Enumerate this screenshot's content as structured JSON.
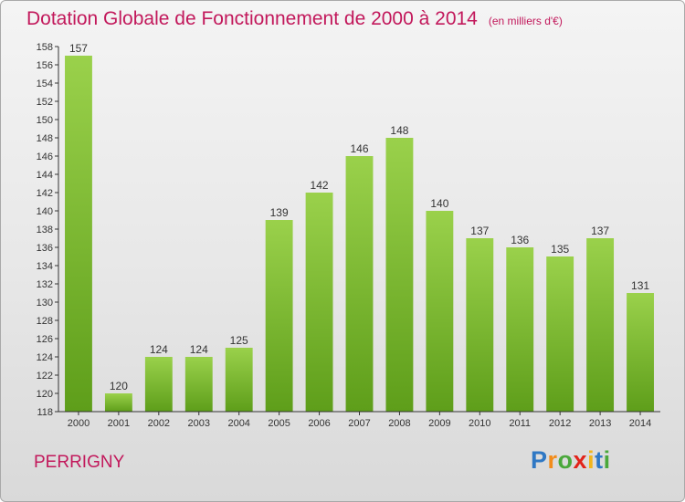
{
  "header": {
    "title": "Dotation Globale de Fonctionnement de 2000 à 2014",
    "unit": "(en milliers d'€)"
  },
  "footer": {
    "commune": "PERRIGNY",
    "logo_letters": [
      "P",
      "r",
      "o",
      "x",
      "i",
      "t",
      "i"
    ]
  },
  "colors": {
    "title": "#c2185b",
    "bar_top": "#9ad14b",
    "bar_bottom": "#5e9e1a",
    "axis": "#333333",
    "grid": "#cfcfcf"
  },
  "chart_data": {
    "type": "bar",
    "categories": [
      "2000",
      "2001",
      "2002",
      "2003",
      "2004",
      "2005",
      "2006",
      "2007",
      "2008",
      "2009",
      "2010",
      "2011",
      "2012",
      "2013",
      "2014"
    ],
    "values": [
      157,
      120,
      124,
      124,
      125,
      139,
      142,
      146,
      148,
      140,
      137,
      136,
      135,
      137,
      131
    ],
    "data_labels": [
      "157",
      "120",
      "124",
      "124",
      "125",
      "139",
      "142",
      "146",
      "148",
      "140",
      "137",
      "136",
      "135",
      "137",
      "131"
    ],
    "title": "Dotation Globale de Fonctionnement de 2000 à 2014",
    "xlabel": "",
    "ylabel": "",
    "ylim": [
      118,
      158
    ],
    "yticks": [
      "118",
      "120",
      "122",
      "124",
      "126",
      "128",
      "130",
      "132",
      "134",
      "136",
      "138",
      "140",
      "142",
      "144",
      "146",
      "148",
      "150",
      "152",
      "154",
      "156",
      "158"
    ],
    "grid": false,
    "legend": "none"
  }
}
